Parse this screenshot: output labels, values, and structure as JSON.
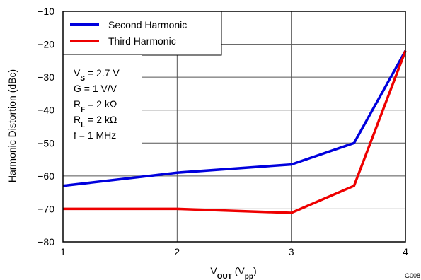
{
  "chart_data": {
    "type": "line",
    "xlabel": {
      "main": "V",
      "sub1": "OUT",
      "mid": " (V",
      "sub2": "pp",
      "end": ")"
    },
    "ylabel": "Harmonic Distortion (dBc)",
    "xlim": [
      1,
      4
    ],
    "ylim": [
      -80,
      -10
    ],
    "x_ticks": [
      1,
      2,
      3,
      4
    ],
    "y_ticks": [
      -10,
      -20,
      -30,
      -40,
      -50,
      -60,
      -70,
      -80
    ],
    "x_tick_labels": [
      "1",
      "2",
      "3",
      "4"
    ],
    "y_tick_labels": [
      "−10",
      "−20",
      "−30",
      "−40",
      "−50",
      "−60",
      "−70",
      "−80"
    ],
    "grid": true,
    "legend_position": "top-left",
    "series": [
      {
        "name": "Second Harmonic",
        "color": "#0000dd",
        "x": [
          1,
          2,
          3,
          3.55,
          4
        ],
        "y": [
          -63,
          -59,
          -56.5,
          -50,
          -22
        ]
      },
      {
        "name": "Third Harmonic",
        "color": "#ee0000",
        "x": [
          1,
          2,
          3,
          3.55,
          4
        ],
        "y": [
          -70,
          -70,
          -71.2,
          -63,
          -22
        ]
      }
    ],
    "conditions": [
      {
        "main": "V",
        "sub": "S",
        "rest": " = 2.7 V"
      },
      {
        "main": "G = 1 V/V",
        "sub": "",
        "rest": ""
      },
      {
        "main": "R",
        "sub": "F",
        "rest": " = 2 kΩ"
      },
      {
        "main": "R",
        "sub": "L",
        "rest": " = 2 kΩ"
      },
      {
        "main": "f = 1 MHz",
        "sub": "",
        "rest": ""
      }
    ],
    "figure_code": "G008"
  }
}
